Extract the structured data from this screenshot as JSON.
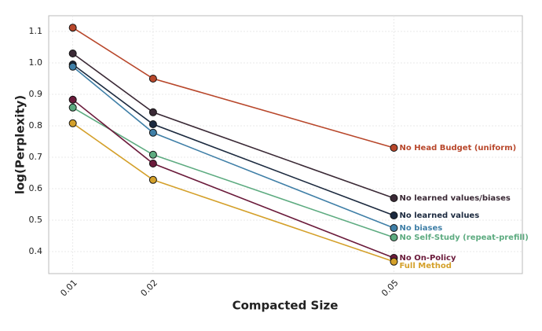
{
  "chart_data": {
    "type": "line",
    "x_label": "Compacted Size",
    "y_label": "log(Perplexity)",
    "x": [
      0.01,
      0.02,
      0.05
    ],
    "xlim": [
      0.007,
      0.066
    ],
    "xticks": [
      0.01,
      0.02,
      0.05
    ],
    "ylim": [
      0.33,
      1.15
    ],
    "yticks": [
      0.4,
      0.5,
      0.6,
      0.7,
      0.8,
      0.9,
      {
        "value": 1,
        "label": "1.0"
      },
      1.1
    ],
    "grid": true,
    "series": [
      {
        "name": "No Head Budget (uniform)",
        "color": "#b8472b",
        "values": [
          1.112,
          0.95,
          0.73
        ]
      },
      {
        "name": "No learned values/biases",
        "color": "#3b2a36",
        "values": [
          1.03,
          0.843,
          0.57
        ]
      },
      {
        "name": "No learned values",
        "color": "#1c2a3f",
        "values": [
          0.995,
          0.805,
          0.515
        ]
      },
      {
        "name": "No biases",
        "color": "#3f7fa7",
        "values": [
          0.988,
          0.778,
          0.475
        ]
      },
      {
        "name": "No Self-Study (repeat-prefill)",
        "color": "#5dab80",
        "values": [
          0.858,
          0.708,
          0.445
        ]
      },
      {
        "name": "No On-Policy",
        "color": "#6b1b3b",
        "values": [
          0.883,
          0.68,
          0.38
        ]
      },
      {
        "name": "Full Method",
        "color": "#d4a02a",
        "values": [
          0.808,
          0.628,
          0.368
        ]
      }
    ]
  }
}
